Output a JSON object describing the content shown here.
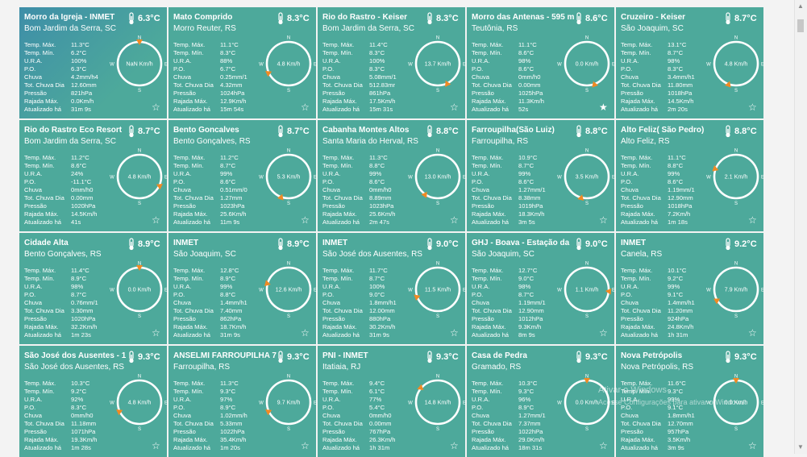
{
  "labels": [
    "Temp. Máx.",
    "Temp. Mín.",
    "U.R.A.",
    "P.O.",
    "Chuva",
    "Tot. Chuva Dia",
    "Pressão",
    "Rajada Máx.",
    "Atualizado há"
  ],
  "compass": {
    "n": "N",
    "s": "S",
    "e": "E",
    "w": "W"
  },
  "units": {
    "wind": "Km/h"
  },
  "icons": {
    "thermometer": "thermometer-icon",
    "star": "star-icon",
    "star_filled": "star-filled-icon"
  },
  "colors": {
    "card": "#4da99b",
    "accent": "#f08a24",
    "text": "#ffffff"
  },
  "watermark": {
    "line1": "Ativar o Windows",
    "line2": "Acesse Configurações para ativar o Windows."
  },
  "stations": [
    {
      "name": "Morro da Igreja - INMET",
      "location": "Bom Jardim da Serra, SC",
      "temp": "6.3°C",
      "values": [
        "11.3°C",
        "6.2°C",
        "100%",
        "6.3°C",
        "4.2mm/h4",
        "12.60mm",
        "821hPa",
        "0.0Km/h",
        "31m 9s"
      ],
      "wind": "NaN",
      "wind_dir_deg": 0,
      "favorite": false,
      "highlight": true
    },
    {
      "name": "Mato Comprido",
      "location": "Morro Reuter, RS",
      "temp": "8.3°C",
      "values": [
        "11.1°C",
        "8.3°C",
        "88%",
        "6.7°C",
        "0.25mm/1",
        "4.32mm",
        "1024hPa",
        "12.9Km/h",
        "15m 54s"
      ],
      "wind": "4.8",
      "wind_dir_deg": 245,
      "favorite": false
    },
    {
      "name": "Rio do Rastro - Keiser",
      "location": "Bom Jardim da Serra, SC",
      "temp": "8.3°C",
      "values": [
        "11.4°C",
        "8.3°C",
        "100%",
        "8.3°C",
        "5.08mm/1",
        "512.83mr",
        "861hPa",
        "17.5Km/h",
        "15m 31s"
      ],
      "wind": "13.7",
      "wind_dir_deg": 155,
      "favorite": false
    },
    {
      "name": "Morro das Antenas - 595 m",
      "location": "Teutônia, RS",
      "temp": "8.6°C",
      "values": [
        "11.1°C",
        "8.6°C",
        "98%",
        "8.6°C",
        "0mm/h0",
        "0.00mm",
        "1025hPa",
        "11.3Km/h",
        "52s"
      ],
      "wind": "0.0",
      "wind_dir_deg": 160,
      "favorite": true
    },
    {
      "name": "Cruzeiro - Keiser",
      "location": "São Joaquim, SC",
      "temp": "8.7°C",
      "values": [
        "13.1°C",
        "8.7°C",
        "98%",
        "8.3°C",
        "3.4mm/h1",
        "11.80mm",
        "1018hPa",
        "14.5Km/h",
        "2m 20s"
      ],
      "wind": "4.8",
      "wind_dir_deg": 200,
      "favorite": false
    },
    {
      "name": "Rio do Rastro Eco Resort",
      "location": "Bom Jardim da Serra, SC",
      "temp": "8.7°C",
      "values": [
        "11.2°C",
        "8.6°C",
        "24%",
        "-11.1°C",
        "0mm/h0",
        "0.00mm",
        "1020hPa",
        "14.5Km/h",
        "41s"
      ],
      "wind": "4.8",
      "wind_dir_deg": 115,
      "favorite": false
    },
    {
      "name": "Bento Goncalves",
      "location": "Bento Gonçalves, RS",
      "temp": "8.7°C",
      "values": [
        "11.2°C",
        "8.7°C",
        "99%",
        "8.6°C",
        "0.51mm/0",
        "1.27mm",
        "1023hPa",
        "25.6Km/h",
        "11m 9s"
      ],
      "wind": "5.3",
      "wind_dir_deg": 200,
      "favorite": false
    },
    {
      "name": "Cabanha Montes Altos",
      "location": "Santa Maria do Herval, RS",
      "temp": "8.8°C",
      "values": [
        "11.3°C",
        "8.8°C",
        "99%",
        "8.6°C",
        "0mm/h0",
        "8.89mm",
        "1023hPa",
        "25.6Km/h",
        "2m 47s"
      ],
      "wind": "13.0",
      "wind_dir_deg": 215,
      "favorite": false
    },
    {
      "name": "Farroupilha(São Luiz)",
      "location": "Farroupilha, RS",
      "temp": "8.8°C",
      "values": [
        "10.9°C",
        "8.7°C",
        "99%",
        "8.6°C",
        "1.27mm/1",
        "8.38mm",
        "1019hPa",
        "18.3Km/h",
        "3m 5s"
      ],
      "wind": "3.5",
      "wind_dir_deg": 195,
      "favorite": false
    },
    {
      "name": "Alto Feliz( São Pedro)",
      "location": "Alto Feliz, RS",
      "temp": "8.8°C",
      "values": [
        "11.1°C",
        "8.8°C",
        "99%",
        "8.6°C",
        "1.19mm/1",
        "12.90mm",
        "1018hPa",
        "7.2Km/h",
        "1m 18s"
      ],
      "wind": "2.1",
      "wind_dir_deg": 290,
      "favorite": false
    },
    {
      "name": "Cidade Alta",
      "location": "Bento Gonçalves, RS",
      "temp": "8.9°C",
      "values": [
        "11.4°C",
        "8.9°C",
        "98%",
        "8.7°C",
        "0.76mm/1",
        "3.30mm",
        "1020hPa",
        "32.2Km/h",
        "1m 23s"
      ],
      "wind": "0.0",
      "wind_dir_deg": 0,
      "favorite": false
    },
    {
      "name": "INMET",
      "location": "São Joaquim, SC",
      "temp": "8.9°C",
      "values": [
        "12.8°C",
        "8.9°C",
        "99%",
        "8.8°C",
        "1.4mm/h1",
        "7.40mm",
        "862hPa",
        "18.7Km/h",
        "31m 9s"
      ],
      "wind": "12.6",
      "wind_dir_deg": 285,
      "favorite": false
    },
    {
      "name": "INMET",
      "location": "São José dos Ausentes, RS",
      "temp": "9.0°C",
      "values": [
        "11.7°C",
        "8.7°C",
        "100%",
        "9.0°C",
        "1.8mm/h1",
        "12.00mm",
        "880hPa",
        "30.2Km/h",
        "31m 9s"
      ],
      "wind": "11.5",
      "wind_dir_deg": 250,
      "favorite": false
    },
    {
      "name": "GHJ - Boava - Estação da",
      "location": "São Joaquim, SC",
      "temp": "9.0°C",
      "values": [
        "12.7°C",
        "9.0°C",
        "98%",
        "8.7°C",
        "1.19mm/1",
        "12.90mm",
        "1012hPa",
        "9.3Km/h",
        "8m 9s"
      ],
      "wind": "1.1",
      "wind_dir_deg": 95,
      "favorite": false
    },
    {
      "name": "INMET",
      "location": "Canela, RS",
      "temp": "9.2°C",
      "values": [
        "10.1°C",
        "9.2°C",
        "99%",
        "9.1°C",
        "1.4mm/h1",
        "11.20mm",
        "924hPa",
        "24.8Km/h",
        "1h 31m"
      ],
      "wind": "7.9",
      "wind_dir_deg": 240,
      "favorite": false
    },
    {
      "name": "São José dos Ausentes - 1",
      "location": "São José dos Ausentes, RS",
      "temp": "9.3°C",
      "values": [
        "10.3°C",
        "9.2°C",
        "92%",
        "8.3°C",
        "0mm/h0",
        "11.18mm",
        "1071hPa",
        "19.3Km/h",
        "1m 28s"
      ],
      "wind": "4.8",
      "wind_dir_deg": 245,
      "favorite": false
    },
    {
      "name": "ANSELMI FARROUPILHA 7",
      "location": "Farroupilha, RS",
      "temp": "9.3°C",
      "values": [
        "11.3°C",
        "9.3°C",
        "97%",
        "8.9°C",
        "1.02mm/h",
        "5.33mm",
        "1022hPa",
        "35.4Km/h",
        "1m 20s"
      ],
      "wind": "9.7",
      "wind_dir_deg": 245,
      "favorite": false
    },
    {
      "name": "PNI - INMET",
      "location": "Itatiaia, RJ",
      "temp": "9.3°C",
      "values": [
        "9.4°C",
        "6.1°C",
        "77%",
        "5.4°C",
        "0mm/h0",
        "0.00mm",
        "767hPa",
        "26.3Km/h",
        "1h 31m"
      ],
      "wind": "14.8",
      "wind_dir_deg": 310,
      "favorite": false
    },
    {
      "name": "Casa de Pedra",
      "location": "Gramado, RS",
      "temp": "9.3°C",
      "values": [
        "10.3°C",
        "9.3°C",
        "96%",
        "8.9°C",
        "1.27mm/1",
        "7.37mm",
        "1022hPa",
        "29.0Km/h",
        "18m 31s"
      ],
      "wind": "0.0",
      "wind_dir_deg": 0,
      "favorite": false
    },
    {
      "name": "Nova Petrópolis",
      "location": "Nova Petrópolis, RS",
      "temp": "9.3°C",
      "values": [
        "11.6°C",
        "9.3°C",
        "99%",
        "9.1°C",
        "1.8mm/h1",
        "12.70mm",
        "957hPa",
        "3.5Km/h",
        "3m 9s"
      ],
      "wind": "0.0",
      "wind_dir_deg": 0,
      "favorite": false
    }
  ]
}
